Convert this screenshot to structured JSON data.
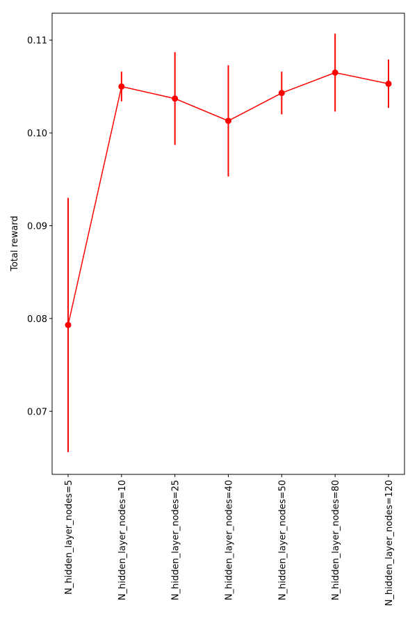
{
  "chart_data": {
    "type": "errorbar-line",
    "ylabel": "Total reward",
    "categories": [
      "N_hidden_layer_nodes=5",
      "N_hidden_layer_nodes=10",
      "N_hidden_layer_nodes=25",
      "N_hidden_layer_nodes=40",
      "N_hidden_layer_nodes=50",
      "N_hidden_layer_nodes=80",
      "N_hidden_layer_nodes=120"
    ],
    "values": [
      0.0793,
      0.105,
      0.1037,
      0.1013,
      0.1043,
      0.1065,
      0.1053
    ],
    "errors": [
      0.0137,
      0.0016,
      0.005,
      0.006,
      0.0023,
      0.0042,
      0.0026
    ],
    "color": "#ff0000",
    "ylim": [
      0.0632,
      0.1129
    ],
    "yticks": [
      0.07,
      0.08,
      0.09,
      {
        "value": 0.1,
        "label": "0.10"
      },
      0.11
    ]
  }
}
